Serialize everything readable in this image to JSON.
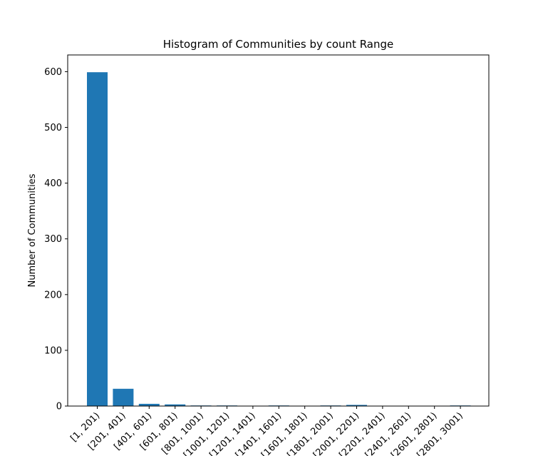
{
  "chart_data": {
    "type": "bar",
    "title": "Histogram of Communities by count Range",
    "xlabel": "",
    "ylabel": "Number of Communities",
    "categories": [
      "[1, 201)",
      "[201, 401)",
      "[401, 601)",
      "[601, 801)",
      "[801, 1001)",
      "[1001, 1201)",
      "[1201, 1401)",
      "[1401, 1601)",
      "[1601, 1801)",
      "[1801, 2001)",
      "[2001, 2201)",
      "[2201, 2401)",
      "[2401, 2601)",
      "[2601, 2801)",
      "[2801, 3001)"
    ],
    "values": [
      599,
      31,
      4,
      3,
      1,
      1,
      0,
      1,
      0,
      1,
      2,
      0,
      0,
      0,
      1
    ],
    "ylim": [
      0,
      630
    ],
    "yticks": [
      0,
      100,
      200,
      300,
      400,
      500,
      600
    ],
    "bar_color": "#1f77b4",
    "grid": false,
    "legend": "none"
  }
}
